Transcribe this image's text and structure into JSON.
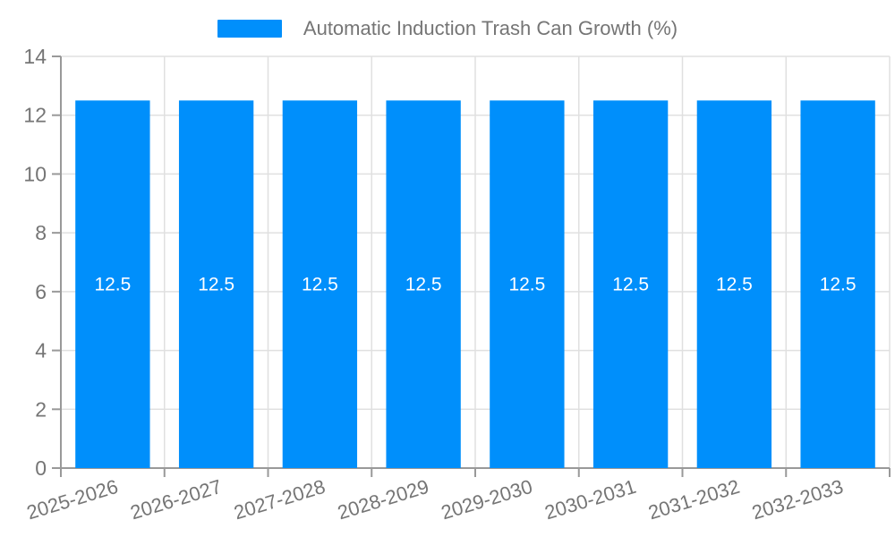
{
  "chart_data": {
    "type": "bar",
    "title": "Automatic Induction Trash Can Growth (%)",
    "legend_label": "Automatic Induction Trash Can Growth (%)",
    "legend_position": "top-center",
    "categories": [
      "2025-2026",
      "2026-2027",
      "2027-2028",
      "2028-2029",
      "2029-2030",
      "2030-2031",
      "2031-2032",
      "2032-2033"
    ],
    "values": [
      12.5,
      12.5,
      12.5,
      12.5,
      12.5,
      12.5,
      12.5,
      12.5
    ],
    "bar_labels": [
      "12.5",
      "12.5",
      "12.5",
      "12.5",
      "12.5",
      "12.5",
      "12.5",
      "12.5"
    ],
    "xlabel": "",
    "ylabel": "",
    "ylim": [
      0,
      14
    ],
    "yticks": [
      0,
      2,
      4,
      6,
      8,
      10,
      12,
      14
    ],
    "grid": true,
    "x_label_rotation": -17,
    "data_labels": true,
    "colors": {
      "bar": "#008FFB",
      "grid": "#E0E0E0",
      "axis": "#999999",
      "text": "#757575",
      "bar_label": "#FFFFFF",
      "background": "#FFFFFF"
    }
  }
}
